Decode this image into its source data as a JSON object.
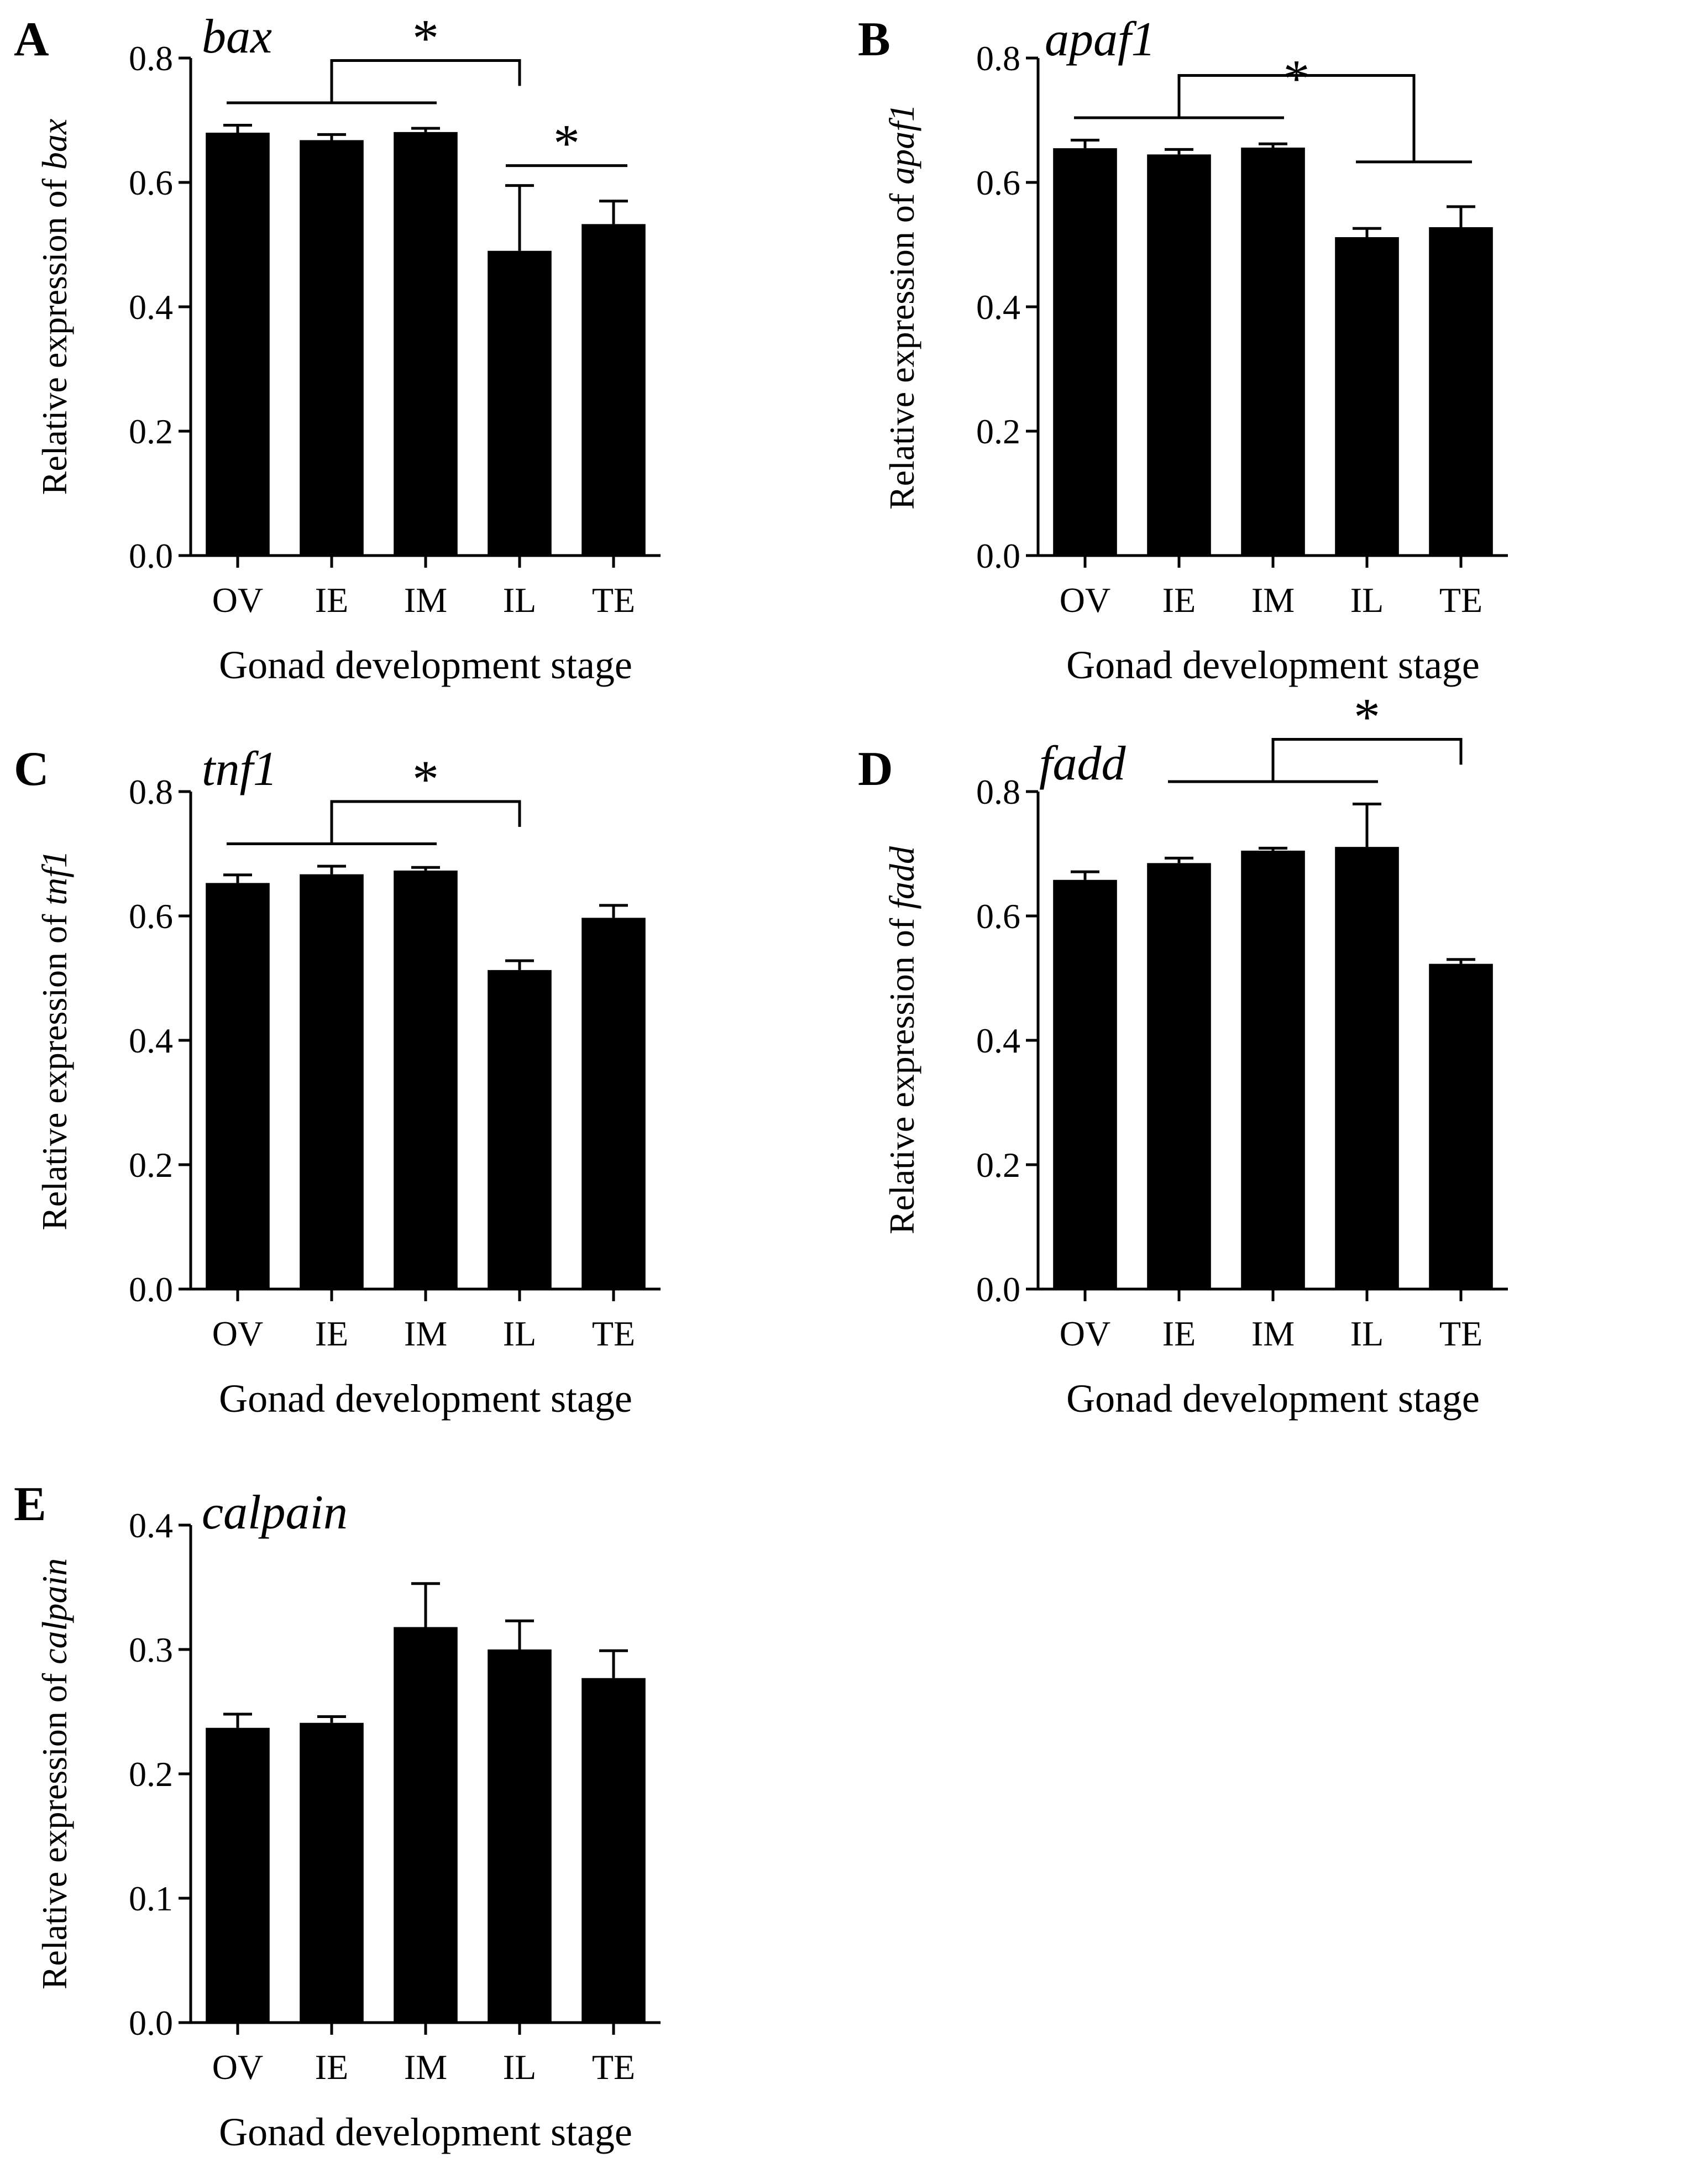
{
  "chart_data": [
    {
      "type": "bar",
      "panel": "A",
      "title": "bax",
      "ylabel_prefix": "Relative expression of ",
      "ylabel_gene": "bax",
      "xlabel": "Gonad development stage",
      "categories": [
        "OV",
        "IE",
        "IM",
        "IL",
        "TE"
      ],
      "values": [
        0.68,
        0.668,
        0.681,
        0.49,
        0.533
      ],
      "errors": [
        0.012,
        0.009,
        0.006,
        0.105,
        0.037
      ],
      "ylim": [
        0,
        0.8
      ],
      "yticks": [
        "0.0",
        "0.2",
        "0.4",
        "0.6",
        "0.8"
      ],
      "significance": [
        {
          "type": "group",
          "group": [
            0,
            2
          ],
          "target": 3,
          "label": "*"
        },
        {
          "type": "pair",
          "group": [
            3,
            4
          ],
          "label": "*"
        }
      ]
    },
    {
      "type": "bar",
      "panel": "B",
      "title": "apaf1",
      "ylabel_prefix": "Relative expression of ",
      "ylabel_gene": "apaf1",
      "xlabel": "Gonad development stage",
      "categories": [
        "OV",
        "IE",
        "IM",
        "IL",
        "TE"
      ],
      "values": [
        0.655,
        0.645,
        0.656,
        0.512,
        0.528
      ],
      "errors": [
        0.013,
        0.008,
        0.006,
        0.014,
        0.033
      ],
      "ylim": [
        0,
        0.8
      ],
      "yticks": [
        "0.0",
        "0.2",
        "0.4",
        "0.6",
        "0.8"
      ],
      "significance": [
        {
          "type": "group-group",
          "group": [
            0,
            2
          ],
          "group2": [
            3,
            4
          ],
          "label": "*"
        }
      ]
    },
    {
      "type": "bar",
      "panel": "C",
      "title": "tnf1",
      "ylabel_prefix": "Relative expression of ",
      "ylabel_gene": "tnf1",
      "xlabel": "Gonad development stage",
      "categories": [
        "OV",
        "IE",
        "IM",
        "IL",
        "TE"
      ],
      "values": [
        0.653,
        0.667,
        0.673,
        0.513,
        0.597
      ],
      "errors": [
        0.013,
        0.013,
        0.005,
        0.015,
        0.02
      ],
      "ylim": [
        0,
        0.8
      ],
      "yticks": [
        "0.0",
        "0.2",
        "0.4",
        "0.6",
        "0.8"
      ],
      "significance": [
        {
          "type": "group",
          "group": [
            0,
            2
          ],
          "target": 3,
          "label": "*"
        }
      ]
    },
    {
      "type": "bar",
      "panel": "D",
      "title": "fadd",
      "ylabel_prefix": "Relative expression of ",
      "ylabel_gene": "fadd",
      "xlabel": "Gonad development stage",
      "categories": [
        "OV",
        "IE",
        "IM",
        "IL",
        "TE"
      ],
      "values": [
        0.658,
        0.685,
        0.705,
        0.711,
        0.523
      ],
      "errors": [
        0.013,
        0.008,
        0.004,
        0.069,
        0.007
      ],
      "ylim": [
        0,
        0.8
      ],
      "yticks": [
        "0.0",
        "0.2",
        "0.4",
        "0.6",
        "0.8"
      ],
      "significance": [
        {
          "type": "group",
          "group": [
            1,
            3
          ],
          "target": 4,
          "label": "*"
        }
      ]
    },
    {
      "type": "bar",
      "panel": "E",
      "title": "calpain",
      "ylabel_prefix": "Relative expression of ",
      "ylabel_gene": "calpain",
      "xlabel": "Gonad development stage",
      "categories": [
        "OV",
        "IE",
        "IM",
        "IL",
        "TE"
      ],
      "values": [
        0.237,
        0.241,
        0.318,
        0.3,
        0.277
      ],
      "errors": [
        0.011,
        0.005,
        0.035,
        0.023,
        0.022
      ],
      "ylim": [
        0,
        0.4
      ],
      "yticks": [
        "0.0",
        "0.1",
        "0.2",
        "0.3",
        "0.4"
      ],
      "significance": []
    }
  ]
}
